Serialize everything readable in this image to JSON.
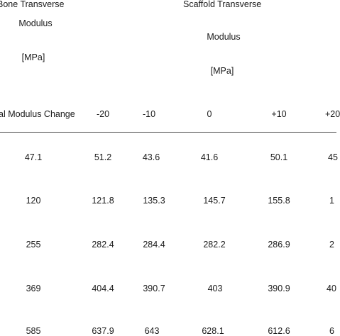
{
  "header": {
    "bone_line1": "Bone Transverse",
    "bone_line2": "Modulus",
    "bone_line3": "[MPa]",
    "scaffold_line1": "Scaffold Transverse",
    "scaffold_line2": "Modulus",
    "scaffold_line3": "[MPa]",
    "row_label": "al Modulus Change"
  },
  "columns": [
    "-20",
    "-10",
    "0",
    "+10",
    "+20"
  ],
  "rows": [
    {
      "bone": "47.1",
      "values": [
        "51.2",
        "43.6",
        "41.6",
        "50.1",
        "45"
      ]
    },
    {
      "bone": "120",
      "values": [
        "121.8",
        "135.3",
        "145.7",
        "155.8",
        "1"
      ]
    },
    {
      "bone": "255",
      "values": [
        "282.4",
        "284.4",
        "282.2",
        "286.9",
        "2"
      ]
    },
    {
      "bone": "369",
      "values": [
        "404.4",
        "390.7",
        "403",
        "390.9",
        "40"
      ]
    },
    {
      "bone": "585",
      "values": [
        "637.9",
        "643",
        "628.1",
        "612.6",
        "6"
      ]
    }
  ]
}
